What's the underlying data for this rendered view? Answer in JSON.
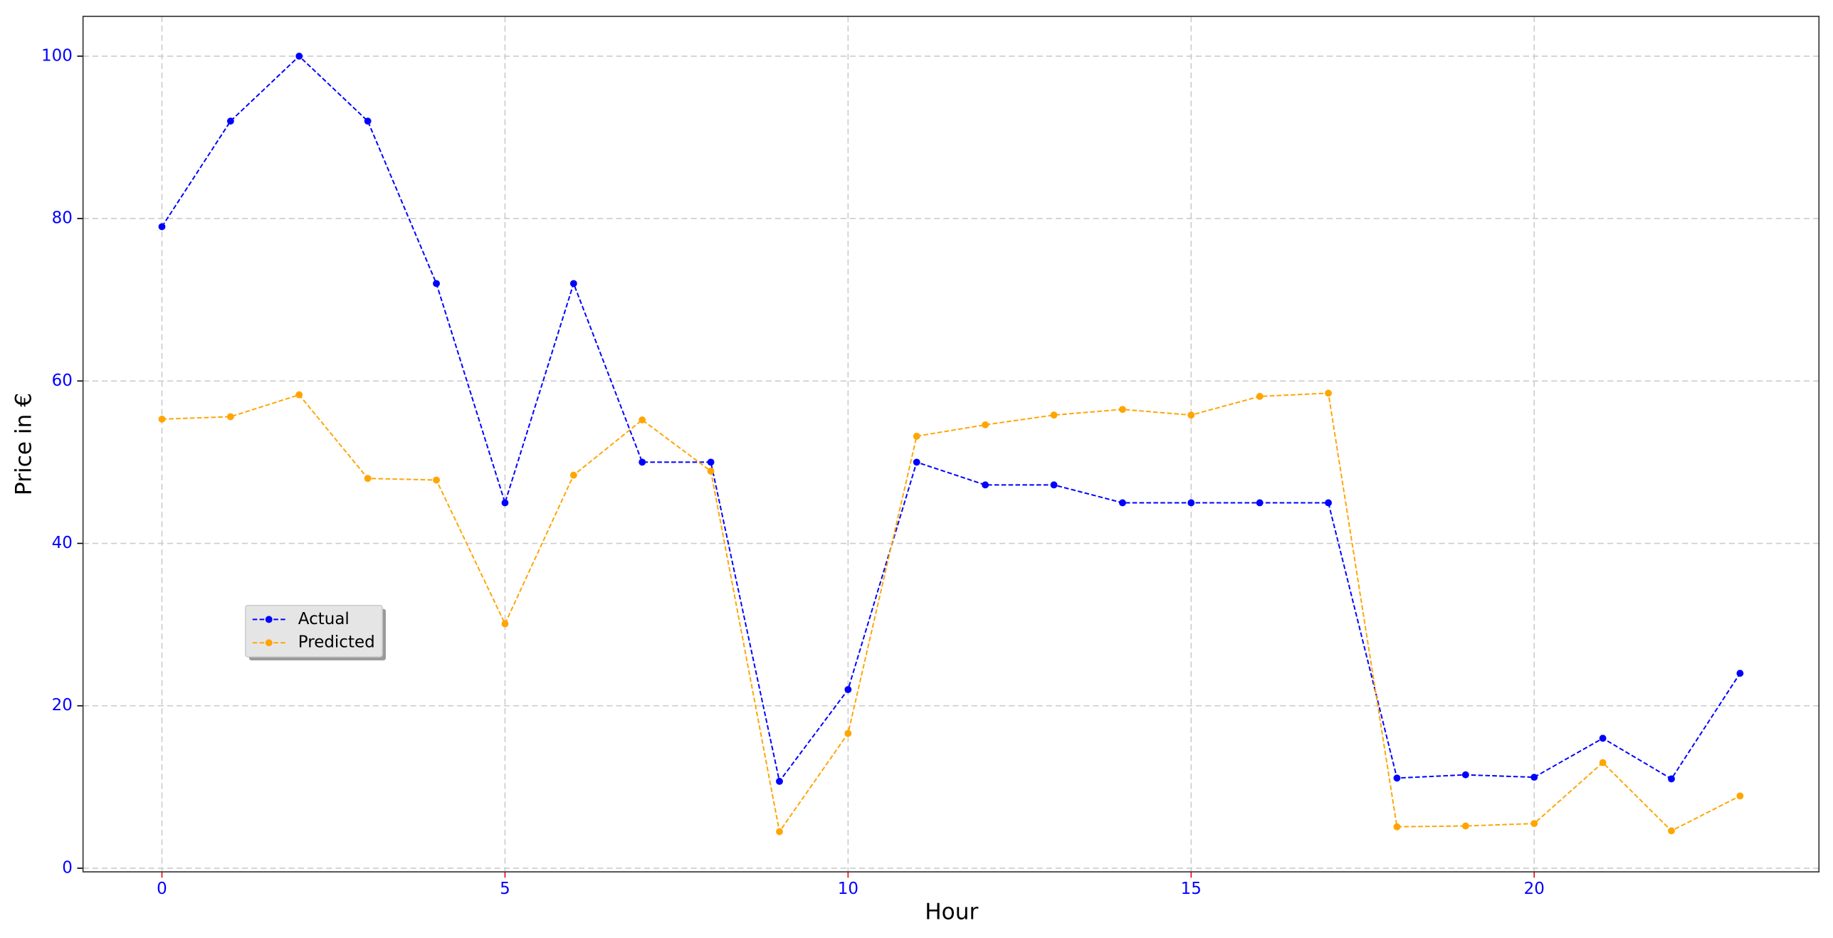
{
  "chart_data": {
    "type": "line",
    "x_label": "Hour",
    "y_label": "Price in €",
    "x": [
      0,
      1,
      2,
      3,
      4,
      5,
      6,
      7,
      8,
      9,
      10,
      11,
      12,
      13,
      14,
      15,
      16,
      17,
      18,
      19,
      20,
      21,
      22,
      23
    ],
    "series": [
      {
        "name": "Actual",
        "color": "#0000ff",
        "values": [
          79,
          92,
          100,
          92,
          72,
          45,
          72,
          50,
          50,
          10.7,
          22,
          50,
          47.2,
          47.2,
          45,
          45,
          45,
          45,
          11.1,
          11.5,
          11.2,
          16,
          11,
          24
        ]
      },
      {
        "name": "Predicted",
        "color": "#ffa500",
        "values": [
          55.3,
          55.6,
          58.3,
          48,
          47.8,
          30.1,
          48.4,
          55.2,
          48.9,
          4.5,
          16.6,
          53.2,
          54.6,
          55.8,
          56.5,
          55.8,
          58.1,
          58.5,
          5.1,
          5.2,
          5.5,
          13,
          4.6,
          8.9
        ]
      }
    ],
    "xlim": [
      -1.15,
      24.15
    ],
    "xticks": [
      0,
      5,
      10,
      15,
      20
    ],
    "ylim": [
      -0.45,
      104.9
    ],
    "yticks": [
      0,
      20,
      40,
      60,
      80,
      100
    ],
    "grid": true,
    "legend_loc": "lower left",
    "tick_label_color": "#0000ff",
    "x_tick_color": "#ff0000"
  }
}
